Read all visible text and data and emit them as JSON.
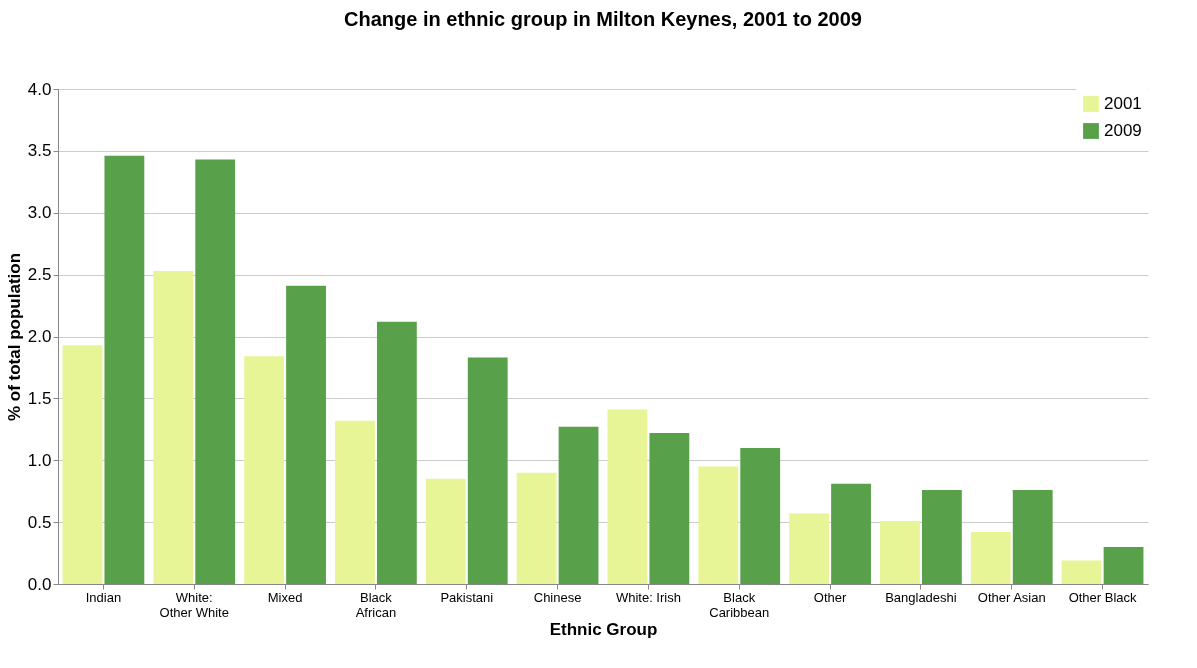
{
  "chart_data": {
    "type": "bar",
    "title": "Change in ethnic group in Milton Keynes, 2001 to 2009",
    "xlabel": "Ethnic Group",
    "ylabel": "% of total population",
    "categories": [
      "Indian",
      "White:\nOther White",
      "Mixed",
      "Black\nAfrican",
      "Pakistani",
      "Chinese",
      "White: Irish",
      "Black\nCaribbean",
      "Other",
      "Bangladeshi",
      "Other Asian",
      "Other Black"
    ],
    "series": [
      {
        "name": "2001",
        "color": "#e8f596",
        "values": [
          1.93,
          2.53,
          1.84,
          1.32,
          0.85,
          0.9,
          1.41,
          0.95,
          0.57,
          0.51,
          0.42,
          0.19
        ]
      },
      {
        "name": "2009",
        "color": "#58a14a",
        "values": [
          3.46,
          3.43,
          2.41,
          2.12,
          1.83,
          1.27,
          1.22,
          1.1,
          0.81,
          0.76,
          0.76,
          0.3
        ]
      }
    ],
    "ylim": [
      0,
      4
    ],
    "yticks": [
      {
        "value": 0,
        "label": "0.0"
      },
      {
        "value": 0.5,
        "label": "0.5"
      },
      {
        "value": 1,
        "label": "1.0"
      },
      {
        "value": 1.5,
        "label": "1.5"
      },
      {
        "value": 2,
        "label": "2.0"
      },
      {
        "value": 2.5,
        "label": "2.5"
      },
      {
        "value": 3,
        "label": "3.0"
      },
      {
        "value": 3.5,
        "label": "3.5"
      },
      {
        "value": 4,
        "label": "4.0"
      }
    ],
    "grid": "y",
    "legend": "top right"
  }
}
